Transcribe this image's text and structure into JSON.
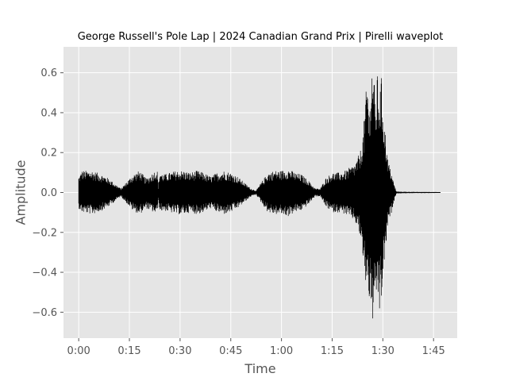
{
  "chart_data": {
    "type": "area",
    "title": "George Russell's Pole Lap | 2024 Canadian Grand Prix | Pirelli waveplot",
    "xlabel": "Time",
    "ylabel": "Amplitude",
    "xlim": [
      -4.5,
      112
    ],
    "ylim": [
      -0.73,
      0.73
    ],
    "x_ticks": [
      {
        "value": 0,
        "label": "0:00"
      },
      {
        "value": 15,
        "label": "0:15"
      },
      {
        "value": 30,
        "label": "0:30"
      },
      {
        "value": 45,
        "label": "0:45"
      },
      {
        "value": 60,
        "label": "1:00"
      },
      {
        "value": 75,
        "label": "1:15"
      },
      {
        "value": 90,
        "label": "1:30"
      },
      {
        "value": 105,
        "label": "1:45"
      }
    ],
    "y_ticks": [
      {
        "value": 0.6,
        "label": "0.6"
      },
      {
        "value": 0.4,
        "label": "0.4"
      },
      {
        "value": 0.2,
        "label": "0.2"
      },
      {
        "value": 0.0,
        "label": "0.0"
      },
      {
        "value": -0.2,
        "label": "−0.2"
      },
      {
        "value": -0.4,
        "label": "−0.4"
      },
      {
        "value": -0.6,
        "label": "−0.6"
      }
    ],
    "grid": true,
    "background_color": "#e5e5e5",
    "grid_color": "#ffffff",
    "wave_color": "#000000",
    "duration_seconds": 107,
    "envelope": {
      "time": [
        0,
        1,
        4,
        7,
        9,
        11,
        12.5,
        14,
        16,
        18,
        20,
        22,
        23.2,
        23.6,
        24,
        25,
        27,
        29,
        31,
        33,
        35,
        37,
        39,
        41,
        43,
        45,
        47,
        49,
        51,
        52.5,
        54,
        56,
        58,
        60,
        62,
        64,
        66,
        68,
        70,
        71.5,
        73,
        75,
        77,
        79,
        80.5,
        81.5,
        82.5,
        83.5,
        84.2,
        84.8,
        85.4,
        86,
        86.6,
        87.2,
        87.8,
        88.4,
        89,
        89.6,
        90.2,
        90.8,
        91.4,
        92,
        92.6,
        93.2,
        94,
        96,
        100,
        104,
        107
      ],
      "positive": [
        0.08,
        0.11,
        0.11,
        0.09,
        0.07,
        0.04,
        0.02,
        0.05,
        0.09,
        0.11,
        0.07,
        0.1,
        0.12,
        0.03,
        0.11,
        0.09,
        0.1,
        0.11,
        0.11,
        0.1,
        0.11,
        0.1,
        0.08,
        0.1,
        0.11,
        0.1,
        0.08,
        0.05,
        0.02,
        0.01,
        0.05,
        0.1,
        0.11,
        0.11,
        0.12,
        0.1,
        0.09,
        0.06,
        0.02,
        0.02,
        0.07,
        0.1,
        0.1,
        0.11,
        0.13,
        0.14,
        0.17,
        0.22,
        0.3,
        0.45,
        0.6,
        0.38,
        0.64,
        0.66,
        0.42,
        0.6,
        0.5,
        0.58,
        0.4,
        0.3,
        0.18,
        0.13,
        0.1,
        0.05,
        0.005,
        0.004,
        0.003,
        0.003,
        0.002
      ],
      "negative": [
        -0.08,
        -0.1,
        -0.11,
        -0.09,
        -0.07,
        -0.04,
        -0.02,
        -0.05,
        -0.09,
        -0.11,
        -0.08,
        -0.1,
        -0.11,
        -0.04,
        -0.1,
        -0.09,
        -0.1,
        -0.11,
        -0.11,
        -0.1,
        -0.11,
        -0.1,
        -0.08,
        -0.1,
        -0.11,
        -0.1,
        -0.08,
        -0.05,
        -0.02,
        -0.01,
        -0.05,
        -0.1,
        -0.11,
        -0.11,
        -0.12,
        -0.1,
        -0.09,
        -0.06,
        -0.02,
        -0.02,
        -0.07,
        -0.1,
        -0.1,
        -0.11,
        -0.13,
        -0.14,
        -0.18,
        -0.24,
        -0.35,
        -0.46,
        -0.45,
        -0.55,
        -0.62,
        -0.67,
        -0.6,
        -0.48,
        -0.62,
        -0.55,
        -0.4,
        -0.3,
        -0.18,
        -0.13,
        -0.1,
        -0.05,
        -0.005,
        -0.004,
        -0.003,
        -0.003,
        -0.002
      ]
    }
  }
}
